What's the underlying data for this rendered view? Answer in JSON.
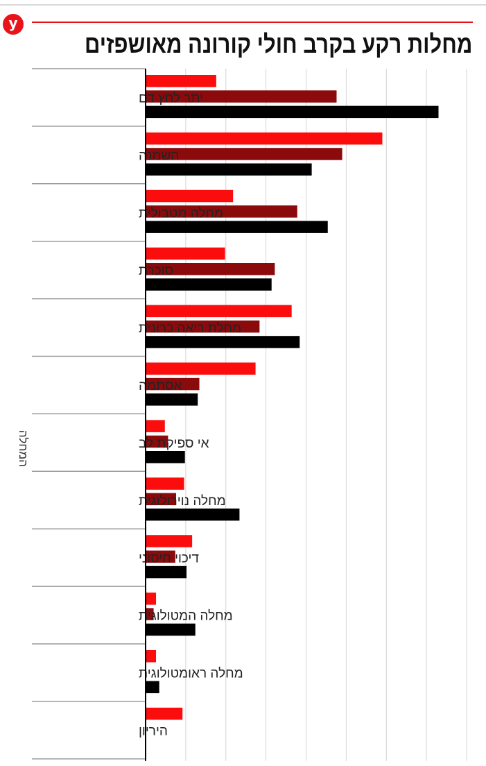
{
  "header": {
    "logo_text": "y",
    "title": "מחלות רקע בקרב חולי קורונה מאושפזים"
  },
  "colors": {
    "series": [
      "#fb0d0d",
      "#8b0b0d",
      "#000000"
    ],
    "gridline": "#d4d4d4",
    "separator": "#9a9a9a",
    "accent": "#e8141a"
  },
  "chart_data": {
    "type": "bar",
    "orientation": "horizontal",
    "title": "מחלות רקע בקרב חולי קורונה מאושפזים",
    "xlabel": "",
    "ylabel": "המחלה",
    "grid": true,
    "legend": "none",
    "xlim": [
      0,
      40
    ],
    "categories": [
      "יתר לחץ דם",
      "השמנה",
      "מחלה מטבולית",
      "סוכרת",
      "מחלת ריאה כרונית",
      "אסתמה",
      "אי ספיקת לב",
      "מחלה נוירולוגית",
      "דיכוי חיסוני",
      "מחלה המטולוגית",
      "מחלה ראומטולוגית",
      "היריון"
    ],
    "series": [
      {
        "values": [
          8.8,
          29.5,
          10.9,
          9.9,
          18.2,
          13.7,
          2.4,
          4.8,
          5.8,
          1.3,
          1.3,
          4.6
        ]
      },
      {
        "values": [
          23.8,
          24.5,
          18.9,
          16.1,
          14.2,
          6.7,
          2.8,
          3.8,
          3.7,
          1.0,
          0,
          0
        ]
      },
      {
        "values": [
          36.5,
          20.7,
          22.7,
          15.7,
          19.2,
          6.5,
          4.9,
          11.7,
          5.1,
          6.2,
          1.7,
          0
        ]
      }
    ]
  }
}
